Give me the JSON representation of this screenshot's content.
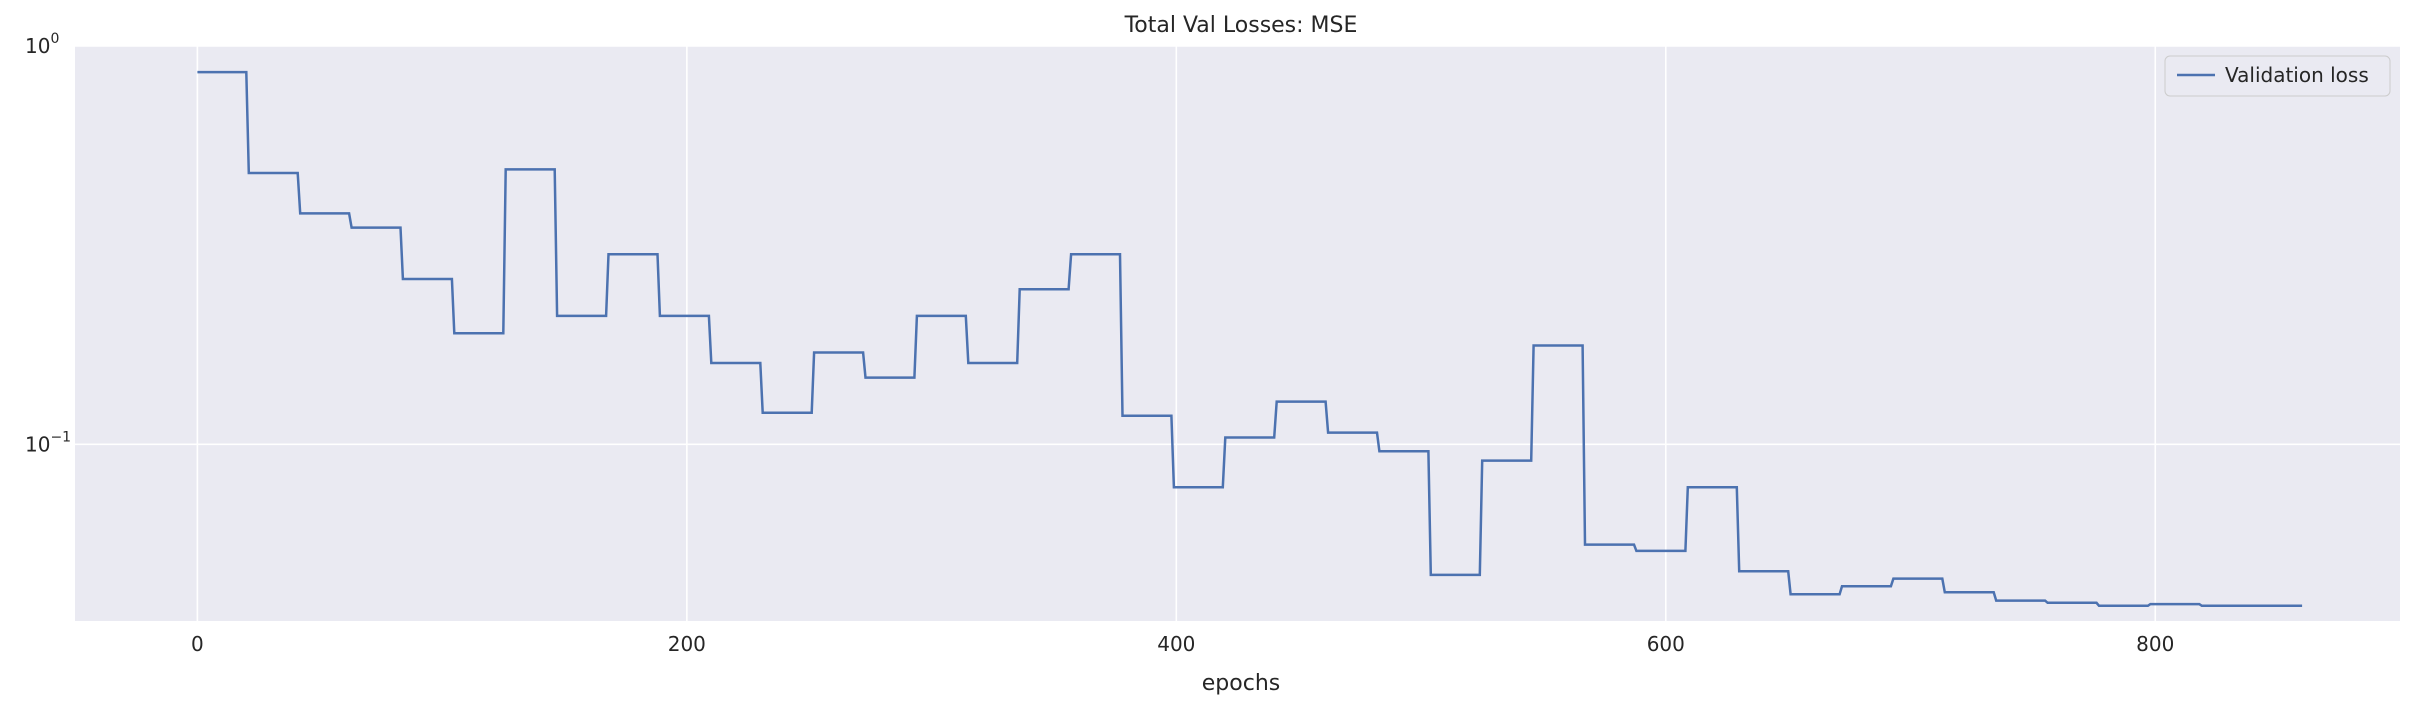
{
  "chart_data": {
    "type": "line",
    "title": "Total Val Losses:  MSE",
    "xlabel": "epochs",
    "ylabel": "",
    "xlim": [
      -50,
      900
    ],
    "ylim": [
      0.036,
      1.0
    ],
    "xticks": [
      0,
      200,
      400,
      600,
      800
    ],
    "xtick_labels": [
      "0",
      "200",
      "400",
      "600",
      "800"
    ],
    "yticks": [
      {
        "value": 1.0,
        "base": "10",
        "exp": "0"
      },
      {
        "value": 0.1,
        "base": "10",
        "exp": "−1"
      }
    ],
    "yscale": "log",
    "grid": true,
    "legend": {
      "position": "top-right",
      "entries": [
        "Validation loss"
      ]
    },
    "series": [
      {
        "name": "Validation loss",
        "color": "#4c72b0",
        "x": [
          0,
          20,
          21,
          41,
          42,
          62,
          63,
          83,
          84,
          104,
          105,
          125,
          126,
          146,
          147,
          167,
          168,
          188,
          189,
          209,
          210,
          230,
          231,
          251,
          252,
          272,
          273,
          293,
          294,
          314,
          315,
          335,
          336,
          356,
          357,
          377,
          378,
          398,
          399,
          419,
          420,
          440,
          441,
          461,
          462,
          482,
          483,
          503,
          504,
          524,
          525,
          545,
          546,
          566,
          567,
          587,
          588,
          608,
          609,
          629,
          630,
          650,
          651,
          671,
          672,
          692,
          693,
          713,
          714,
          734,
          735,
          755,
          756,
          776,
          777,
          797,
          798,
          818,
          819,
          839,
          840,
          860
        ],
        "values": [
          0.86,
          0.86,
          0.48,
          0.48,
          0.38,
          0.38,
          0.35,
          0.35,
          0.26,
          0.26,
          0.19,
          0.19,
          0.49,
          0.49,
          0.21,
          0.21,
          0.3,
          0.3,
          0.21,
          0.21,
          0.16,
          0.16,
          0.12,
          0.12,
          0.17,
          0.17,
          0.147,
          0.147,
          0.21,
          0.21,
          0.16,
          0.16,
          0.245,
          0.245,
          0.3,
          0.3,
          0.118,
          0.118,
          0.078,
          0.078,
          0.104,
          0.104,
          0.128,
          0.128,
          0.107,
          0.107,
          0.096,
          0.096,
          0.047,
          0.047,
          0.091,
          0.091,
          0.177,
          0.177,
          0.056,
          0.056,
          0.054,
          0.054,
          0.078,
          0.078,
          0.048,
          0.048,
          0.042,
          0.042,
          0.044,
          0.044,
          0.046,
          0.046,
          0.0425,
          0.0425,
          0.0405,
          0.0405,
          0.04,
          0.04,
          0.0393,
          0.0393,
          0.0397,
          0.0397,
          0.0393,
          0.0393,
          0.0393,
          0.0393
        ]
      }
    ]
  }
}
